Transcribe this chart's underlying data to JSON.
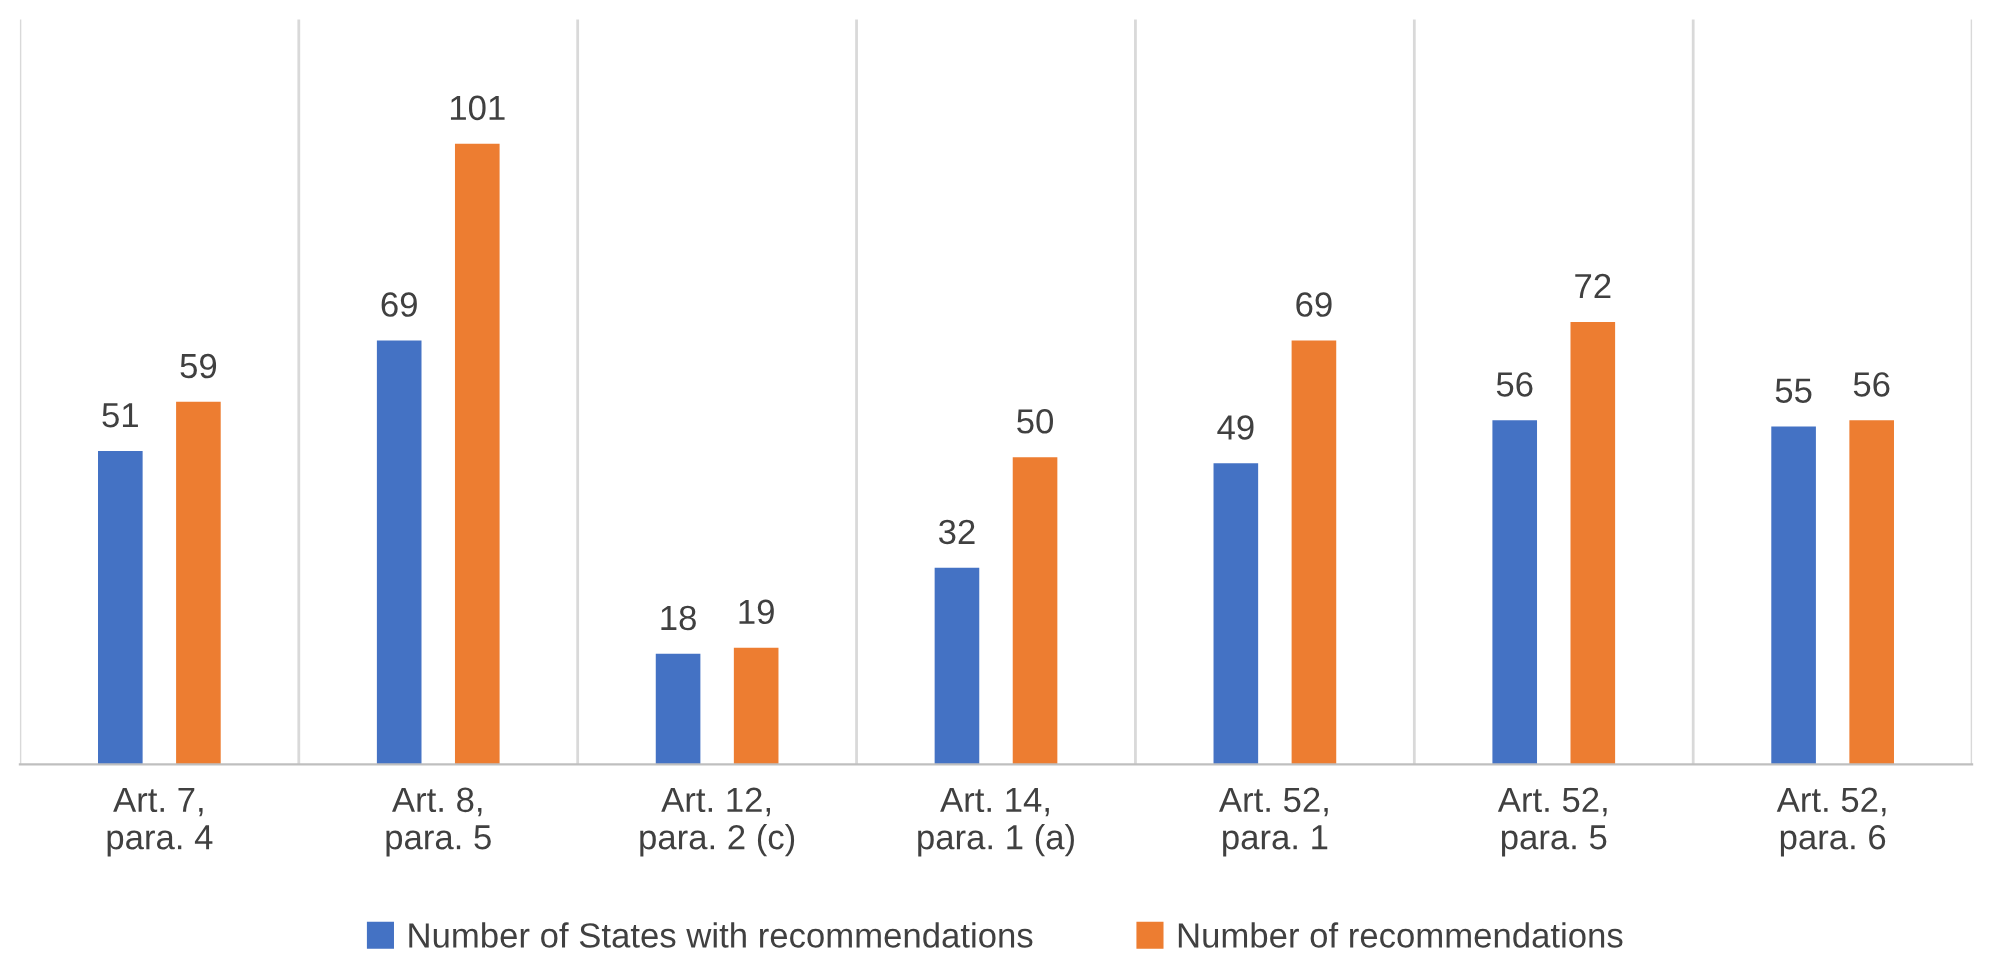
{
  "chart_data": {
    "type": "bar",
    "categories": [
      "Art. 7,\npara. 4",
      "Art. 8,\npara. 5",
      "Art. 12,\npara. 2 (c)",
      "Art. 14,\npara. 1 (a)",
      "Art. 52,\npara. 1",
      "Art. 52,\npara. 5",
      "Art. 52,\npara. 6"
    ],
    "series": [
      {
        "name": "Number of States with recommendations",
        "color": "#4472c4",
        "values": [
          51,
          69,
          18,
          32,
          49,
          56,
          55
        ]
      },
      {
        "name": "Number of recommendations",
        "color": "#ed7d31",
        "values": [
          59,
          101,
          19,
          50,
          69,
          72,
          56
        ]
      }
    ],
    "data_labels": true,
    "grid": "x",
    "legend": "bottom",
    "tick_labels": "x"
  }
}
